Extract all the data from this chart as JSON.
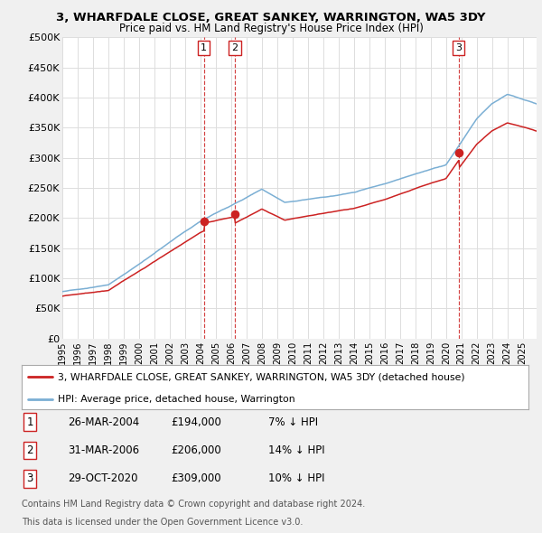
{
  "title": "3, WHARFDALE CLOSE, GREAT SANKEY, WARRINGTON, WA5 3DY",
  "subtitle": "Price paid vs. HM Land Registry's House Price Index (HPI)",
  "hpi_color": "#7bafd4",
  "price_color": "#cc2222",
  "dashed_color": "#cc2222",
  "background_color": "#f0f0f0",
  "plot_bg": "#ffffff",
  "grid_color": "#dddddd",
  "ylim": [
    0,
    500000
  ],
  "yticks": [
    0,
    50000,
    100000,
    150000,
    200000,
    250000,
    300000,
    350000,
    400000,
    450000,
    500000
  ],
  "ytick_labels": [
    "£0",
    "£50K",
    "£100K",
    "£150K",
    "£200K",
    "£250K",
    "£300K",
    "£350K",
    "£400K",
    "£450K",
    "£500K"
  ],
  "xlim_start": 1995,
  "xlim_end": 2025.9,
  "xtick_years": [
    1995,
    1996,
    1997,
    1998,
    1999,
    2000,
    2001,
    2002,
    2003,
    2004,
    2005,
    2006,
    2007,
    2008,
    2009,
    2010,
    2011,
    2012,
    2013,
    2014,
    2015,
    2016,
    2017,
    2018,
    2019,
    2020,
    2021,
    2022,
    2023,
    2024,
    2025
  ],
  "sales": [
    {
      "date": "26-MAR-2004",
      "price": 194000,
      "x_year": 2004.23,
      "label": "1"
    },
    {
      "date": "31-MAR-2006",
      "price": 206000,
      "x_year": 2006.25,
      "label": "2"
    },
    {
      "date": "29-OCT-2020",
      "price": 309000,
      "x_year": 2020.83,
      "label": "3"
    }
  ],
  "legend_line1": "3, WHARFDALE CLOSE, GREAT SANKEY, WARRINGTON, WA5 3DY (detached house)",
  "legend_line2": "HPI: Average price, detached house, Warrington",
  "table": [
    {
      "num": "1",
      "date": "26-MAR-2004",
      "price": "£194,000",
      "hpi": "7% ↓ HPI"
    },
    {
      "num": "2",
      "date": "31-MAR-2006",
      "price": "£206,000",
      "hpi": "14% ↓ HPI"
    },
    {
      "num": "3",
      "date": "29-OCT-2020",
      "price": "£309,000",
      "hpi": "10% ↓ HPI"
    }
  ],
  "footnote1": "Contains HM Land Registry data © Crown copyright and database right 2024.",
  "footnote2": "This data is licensed under the Open Government Licence v3.0."
}
